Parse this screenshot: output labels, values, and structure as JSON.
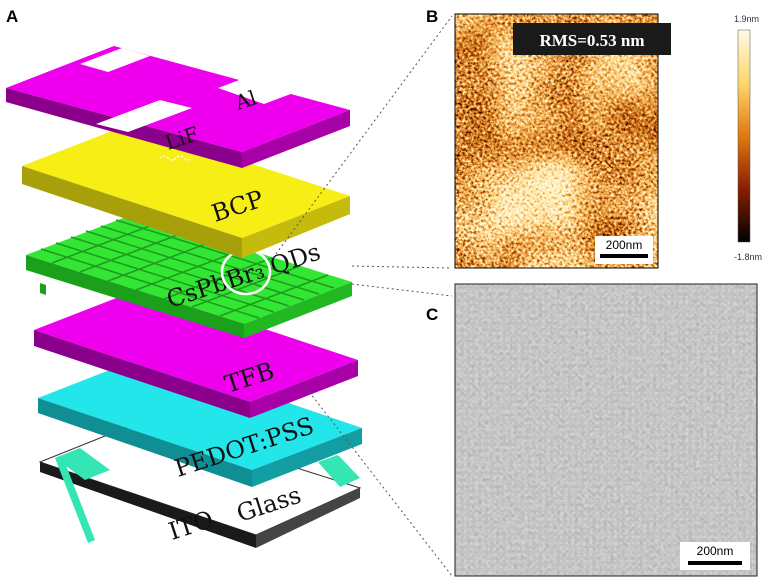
{
  "panels": {
    "a": "A",
    "b": "B",
    "c": "C"
  },
  "layers": {
    "electrode": "Al",
    "lif": "LiF",
    "bcp": "BCP",
    "qds": "CsPbBr₃ QDs",
    "tfb": "TFB",
    "pedot": "PEDOT:PSS",
    "glass": "Glass",
    "ito": "ITO"
  },
  "afm": {
    "rms": "RMS=0.53 nm",
    "scale_bar": "200nm",
    "colorbar_max": "1.9nm",
    "colorbar_min": "-1.8nm"
  },
  "sem": {
    "scale_bar": "200nm"
  },
  "colors": {
    "magenta": "#ee00ee",
    "yellow": "#f6ee14",
    "green": "#33e633",
    "cyan": "#22e6ea",
    "ito_teal": "#33e6b3",
    "glass": "#ffffff"
  }
}
